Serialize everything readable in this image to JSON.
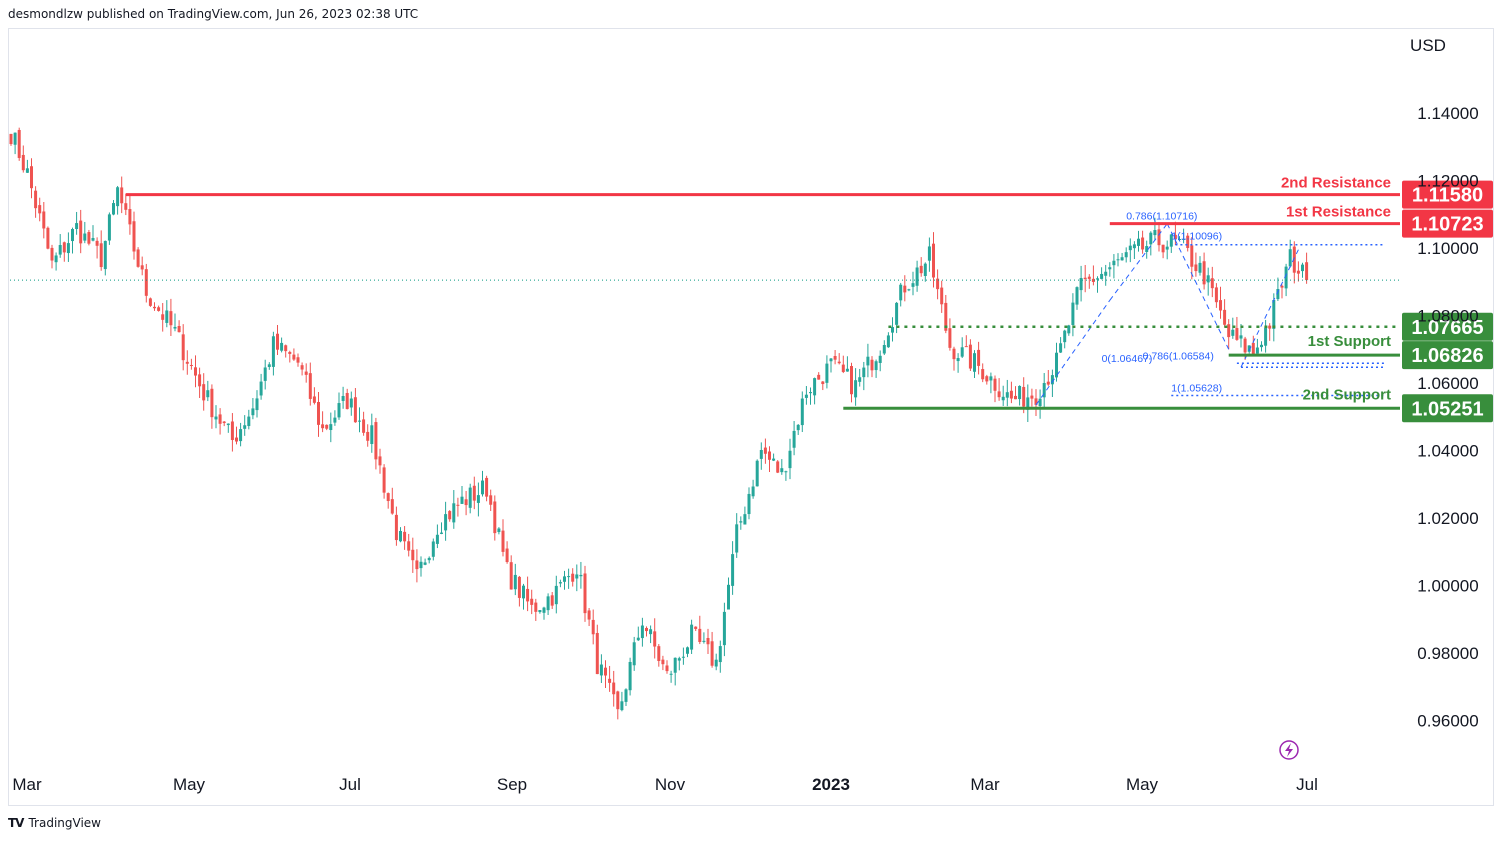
{
  "header": {
    "publisher": "desmondlzw published on TradingView.com, Jun 26, 2023 02:38 UTC"
  },
  "footer": {
    "brand": "TradingView",
    "logo_icon": "tradingview-logo-icon"
  },
  "colors": {
    "up": "#26a69a",
    "down": "#ef5350",
    "resistance": "#f23645",
    "support": "#388e3c",
    "fib": "#2962ff",
    "axis_text": "#131722",
    "grid": "#e0e3eb"
  },
  "chart_data": {
    "type": "candlestick",
    "symbol_currency": "USD",
    "ylim": [
      0.95,
      1.155
    ],
    "y_ticks": [
      "1.14000",
      "1.12000",
      "1.10000",
      "1.08000",
      "1.06000",
      "1.04000",
      "1.02000",
      "1.00000",
      "0.98000",
      "0.96000"
    ],
    "x_ticks": [
      "Mar",
      "May",
      "Jul",
      "Sep",
      "Nov",
      "2023",
      "Mar",
      "May",
      "Jul"
    ],
    "anchors": [
      [
        0,
        1.1343
      ],
      [
        4,
        1.122
      ],
      [
        10,
        1.095
      ],
      [
        16,
        1.106
      ],
      [
        22,
        1.097
      ],
      [
        26,
        1.117
      ],
      [
        33,
        1.087
      ],
      [
        40,
        1.075
      ],
      [
        47,
        1.057
      ],
      [
        54,
        1.043
      ],
      [
        59,
        1.053
      ],
      [
        64,
        1.071
      ],
      [
        70,
        1.066
      ],
      [
        76,
        1.046
      ],
      [
        82,
        1.055
      ],
      [
        88,
        1.044
      ],
      [
        94,
        1.016
      ],
      [
        99,
        1.002
      ],
      [
        104,
        1.018
      ],
      [
        110,
        1.025
      ],
      [
        116,
        1.029
      ],
      [
        121,
        1.004
      ],
      [
        127,
        0.993
      ],
      [
        133,
        0.998
      ],
      [
        138,
        1.006
      ],
      [
        143,
        0.977
      ],
      [
        148,
        0.9615
      ],
      [
        154,
        0.99
      ],
      [
        160,
        0.973
      ],
      [
        166,
        0.985
      ],
      [
        172,
        0.977
      ],
      [
        177,
        1.015
      ],
      [
        183,
        1.04
      ],
      [
        188,
        1.033
      ],
      [
        194,
        1.058
      ],
      [
        200,
        1.065
      ],
      [
        206,
        1.059
      ],
      [
        212,
        1.071
      ],
      [
        218,
        1.089
      ],
      [
        224,
        1.097
      ],
      [
        229,
        1.071
      ],
      [
        236,
        1.065
      ],
      [
        244,
        1.055
      ],
      [
        250,
        1.057
      ],
      [
        255,
        1.066
      ],
      [
        261,
        1.089
      ],
      [
        267,
        1.093
      ],
      [
        273,
        1.098
      ],
      [
        279,
        1.102
      ],
      [
        285,
        1.101
      ],
      [
        291,
        1.092
      ],
      [
        297,
        1.074
      ],
      [
        303,
        1.069
      ],
      [
        307,
        1.078
      ],
      [
        312,
        1.097
      ],
      [
        316,
        1.0905
      ]
    ],
    "levels": [
      {
        "name": "2nd Resistance",
        "value": "1.11580",
        "y": 1.1158,
        "kind": "resistance",
        "x_start": 28
      },
      {
        "name": "1st Resistance",
        "value": "1.10723",
        "y": 1.10723,
        "kind": "resistance",
        "x_start": 268
      },
      {
        "name": "1st Support",
        "value": "1.07665",
        "y": 1.07665,
        "kind": "support-dotted",
        "x_start": 214
      },
      {
        "name": "1st Support",
        "value": "1.06826",
        "y": 1.06826,
        "kind": "support",
        "x_start": 297
      },
      {
        "name": "2nd Support",
        "value": "1.05251",
        "y": 1.05251,
        "kind": "support",
        "x_start": 203
      }
    ],
    "fib_labels": [
      {
        "text": "0.786(1.10716)",
        "x": 272,
        "y": 1.1085
      },
      {
        "text": "1(1.10096)",
        "x": 283,
        "y": 1.1025
      },
      {
        "text": "0.786(1.06584)",
        "x": 276,
        "y": 1.067
      },
      {
        "text": "0(1.06467)",
        "x": 266,
        "y": 1.0662
      },
      {
        "text": "1(1.05628)",
        "x": 283,
        "y": 1.0575
      }
    ],
    "fib_lines": [
      {
        "x_start": 284,
        "x_end": 335,
        "y": 1.10096
      },
      {
        "x_start": 299,
        "x_end": 335,
        "y": 1.06584
      },
      {
        "x_start": 300,
        "x_end": 335,
        "y": 1.06467
      },
      {
        "x_start": 283,
        "x_end": 335,
        "y": 1.05628
      }
    ],
    "fib_trend_lines": [
      {
        "from": [
          250,
          1.0535
        ],
        "to": [
          268,
          1.0845
        ]
      },
      {
        "from": [
          268,
          1.0845
        ],
        "to": [
          282,
          1.1072
        ]
      },
      {
        "from": [
          282,
          1.1072
        ],
        "to": [
          297,
          1.07
        ]
      },
      {
        "from": [
          300,
          1.0647
        ],
        "to": [
          314,
          1.0995
        ]
      }
    ],
    "current_price_line": 1.0905
  },
  "flash_icon": "lightning-icon"
}
